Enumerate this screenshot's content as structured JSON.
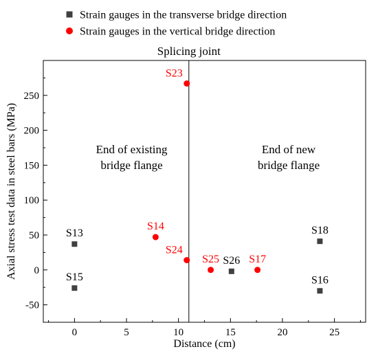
{
  "chart_data": {
    "type": "scatter",
    "xlabel": "Distance (cm)",
    "ylabel": "Axial stress test data in steel bars (MPa)",
    "xlim": [
      -3,
      28
    ],
    "ylim": [
      -75,
      300
    ],
    "x_ticks": [
      0,
      5,
      10,
      15,
      20,
      25
    ],
    "y_ticks": [
      -50,
      0,
      50,
      100,
      150,
      200,
      250
    ],
    "legend_position": "top-center",
    "grid": false,
    "series": [
      {
        "name": "Strain gauges in the transverse bridge direction",
        "marker": "square",
        "color": "#404040",
        "label_color": "#000000",
        "points": [
          {
            "label": "S13",
            "x": 0.0,
            "y": 37
          },
          {
            "label": "S15",
            "x": 0.0,
            "y": -26
          },
          {
            "label": "S26",
            "x": 15.1,
            "y": -2
          },
          {
            "label": "S18",
            "x": 23.6,
            "y": 41
          },
          {
            "label": "S16",
            "x": 23.6,
            "y": -30
          }
        ]
      },
      {
        "name": "Strain gauges in the vertical bridge direction",
        "marker": "circle",
        "color": "#ff0000",
        "label_color": "#ff0000",
        "points": [
          {
            "label": "S23",
            "x": 10.8,
            "y": 267
          },
          {
            "label": "S14",
            "x": 7.8,
            "y": 47
          },
          {
            "label": "S24",
            "x": 10.8,
            "y": 14
          },
          {
            "label": "S25",
            "x": 13.1,
            "y": 0
          },
          {
            "label": "S17",
            "x": 17.6,
            "y": 0
          }
        ]
      }
    ],
    "reference_line": {
      "x": 11.0,
      "label": "Splicing joint"
    },
    "annotations": [
      {
        "lines": [
          "End of existing",
          "bridge flange"
        ],
        "x": 5.5,
        "y": 167
      },
      {
        "lines": [
          "End of new",
          "bridge flange"
        ],
        "x": 20.6,
        "y": 167
      }
    ]
  }
}
